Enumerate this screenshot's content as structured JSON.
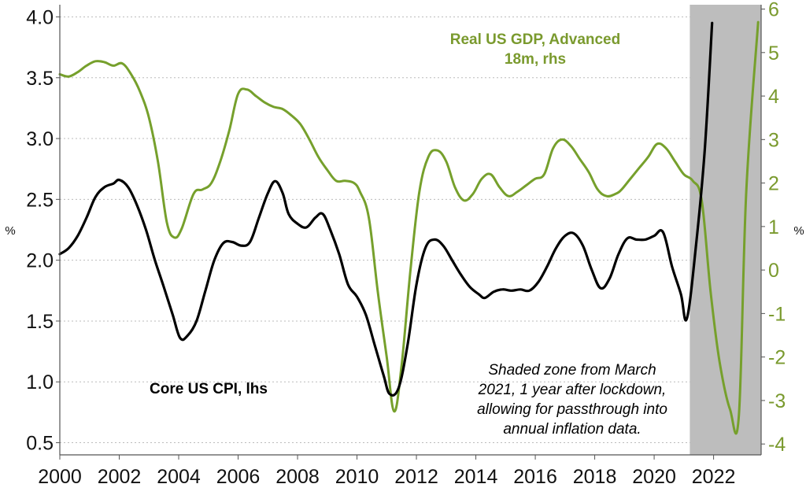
{
  "chart_data": {
    "type": "line",
    "x_range": [
      2000,
      2023.6
    ],
    "x_ticks": [
      "2000",
      "2002",
      "2004",
      "2006",
      "2008",
      "2010",
      "2012",
      "2014",
      "2016",
      "2018",
      "2020",
      "2022"
    ],
    "y_left": {
      "label": "%",
      "range": [
        0.4,
        4.1
      ],
      "ticks": [
        "0.5",
        "1.0",
        "1.5",
        "2.0",
        "2.5",
        "3.0",
        "3.5",
        "4.0"
      ]
    },
    "y_right": {
      "label": "%",
      "range": [
        -4.25,
        6.1
      ],
      "ticks": [
        "-4",
        "-3",
        "-2",
        "-1",
        "0",
        "1",
        "2",
        "3",
        "4",
        "5",
        "6"
      ]
    },
    "grid": "horizontal-dotted",
    "shaded_region": {
      "x": [
        2021.2,
        2023.6
      ],
      "color": "#bdbdbd"
    },
    "series": [
      {
        "name": "Core US CPI, lhs",
        "axis": "left",
        "color": "#000000",
        "points": [
          [
            2000.0,
            2.05
          ],
          [
            2000.3,
            2.1
          ],
          [
            2000.6,
            2.2
          ],
          [
            2000.9,
            2.35
          ],
          [
            2001.2,
            2.52
          ],
          [
            2001.5,
            2.6
          ],
          [
            2001.8,
            2.63
          ],
          [
            2002.0,
            2.66
          ],
          [
            2002.3,
            2.6
          ],
          [
            2002.6,
            2.45
          ],
          [
            2002.9,
            2.25
          ],
          [
            2003.2,
            2.0
          ],
          [
            2003.5,
            1.78
          ],
          [
            2003.8,
            1.55
          ],
          [
            2004.05,
            1.36
          ],
          [
            2004.3,
            1.38
          ],
          [
            2004.6,
            1.5
          ],
          [
            2004.9,
            1.75
          ],
          [
            2005.2,
            2.0
          ],
          [
            2005.5,
            2.14
          ],
          [
            2005.8,
            2.15
          ],
          [
            2006.1,
            2.12
          ],
          [
            2006.4,
            2.15
          ],
          [
            2006.7,
            2.35
          ],
          [
            2007.0,
            2.55
          ],
          [
            2007.25,
            2.65
          ],
          [
            2007.5,
            2.55
          ],
          [
            2007.7,
            2.38
          ],
          [
            2008.0,
            2.3
          ],
          [
            2008.3,
            2.27
          ],
          [
            2008.6,
            2.35
          ],
          [
            2008.85,
            2.38
          ],
          [
            2009.1,
            2.25
          ],
          [
            2009.4,
            2.05
          ],
          [
            2009.7,
            1.8
          ],
          [
            2010.0,
            1.7
          ],
          [
            2010.3,
            1.55
          ],
          [
            2010.6,
            1.3
          ],
          [
            2010.9,
            1.05
          ],
          [
            2011.1,
            0.9
          ],
          [
            2011.4,
            0.95
          ],
          [
            2011.7,
            1.3
          ],
          [
            2012.0,
            1.8
          ],
          [
            2012.3,
            2.1
          ],
          [
            2012.6,
            2.17
          ],
          [
            2012.9,
            2.12
          ],
          [
            2013.2,
            2.0
          ],
          [
            2013.5,
            1.88
          ],
          [
            2013.8,
            1.78
          ],
          [
            2014.1,
            1.72
          ],
          [
            2014.3,
            1.69
          ],
          [
            2014.6,
            1.74
          ],
          [
            2014.9,
            1.76
          ],
          [
            2015.2,
            1.75
          ],
          [
            2015.5,
            1.76
          ],
          [
            2015.8,
            1.75
          ],
          [
            2016.1,
            1.82
          ],
          [
            2016.4,
            1.95
          ],
          [
            2016.7,
            2.1
          ],
          [
            2017.0,
            2.2
          ],
          [
            2017.3,
            2.22
          ],
          [
            2017.6,
            2.12
          ],
          [
            2017.9,
            1.92
          ],
          [
            2018.2,
            1.77
          ],
          [
            2018.5,
            1.85
          ],
          [
            2018.8,
            2.05
          ],
          [
            2019.1,
            2.18
          ],
          [
            2019.4,
            2.17
          ],
          [
            2019.7,
            2.17
          ],
          [
            2020.0,
            2.2
          ],
          [
            2020.3,
            2.23
          ],
          [
            2020.6,
            1.95
          ],
          [
            2020.9,
            1.72
          ],
          [
            2021.1,
            1.52
          ],
          [
            2021.4,
            2.1
          ],
          [
            2021.7,
            2.9
          ],
          [
            2021.95,
            3.95
          ]
        ]
      },
      {
        "name": "Real US GDP, Advanced 18m, rhs",
        "axis": "right",
        "color": "#76a02c",
        "points": [
          [
            2000.0,
            4.5
          ],
          [
            2000.3,
            4.45
          ],
          [
            2000.6,
            4.55
          ],
          [
            2000.9,
            4.7
          ],
          [
            2001.2,
            4.8
          ],
          [
            2001.5,
            4.78
          ],
          [
            2001.8,
            4.7
          ],
          [
            2002.1,
            4.75
          ],
          [
            2002.4,
            4.5
          ],
          [
            2002.7,
            4.1
          ],
          [
            2003.0,
            3.5
          ],
          [
            2003.3,
            2.5
          ],
          [
            2003.6,
            1.1
          ],
          [
            2003.85,
            0.75
          ],
          [
            2004.1,
            0.95
          ],
          [
            2004.5,
            1.75
          ],
          [
            2004.8,
            1.85
          ],
          [
            2005.1,
            2.0
          ],
          [
            2005.4,
            2.5
          ],
          [
            2005.7,
            3.2
          ],
          [
            2006.0,
            4.05
          ],
          [
            2006.3,
            4.15
          ],
          [
            2006.6,
            4.0
          ],
          [
            2006.9,
            3.85
          ],
          [
            2007.2,
            3.75
          ],
          [
            2007.5,
            3.7
          ],
          [
            2007.8,
            3.55
          ],
          [
            2008.1,
            3.35
          ],
          [
            2008.4,
            3.0
          ],
          [
            2008.7,
            2.6
          ],
          [
            2009.0,
            2.3
          ],
          [
            2009.3,
            2.05
          ],
          [
            2009.6,
            2.05
          ],
          [
            2009.9,
            2.0
          ],
          [
            2010.1,
            1.8
          ],
          [
            2010.4,
            1.2
          ],
          [
            2010.7,
            -0.5
          ],
          [
            2011.0,
            -2.0
          ],
          [
            2011.25,
            -3.25
          ],
          [
            2011.5,
            -2.2
          ],
          [
            2011.8,
            0.0
          ],
          [
            2012.1,
            1.8
          ],
          [
            2012.4,
            2.6
          ],
          [
            2012.7,
            2.75
          ],
          [
            2013.0,
            2.5
          ],
          [
            2013.3,
            1.9
          ],
          [
            2013.6,
            1.6
          ],
          [
            2013.9,
            1.75
          ],
          [
            2014.2,
            2.1
          ],
          [
            2014.5,
            2.2
          ],
          [
            2014.8,
            1.9
          ],
          [
            2015.1,
            1.7
          ],
          [
            2015.4,
            1.8
          ],
          [
            2015.7,
            1.95
          ],
          [
            2016.0,
            2.1
          ],
          [
            2016.3,
            2.2
          ],
          [
            2016.6,
            2.8
          ],
          [
            2016.9,
            3.0
          ],
          [
            2017.2,
            2.85
          ],
          [
            2017.5,
            2.55
          ],
          [
            2017.8,
            2.25
          ],
          [
            2018.1,
            1.85
          ],
          [
            2018.4,
            1.7
          ],
          [
            2018.7,
            1.75
          ],
          [
            2018.9,
            1.85
          ],
          [
            2019.2,
            2.1
          ],
          [
            2019.5,
            2.35
          ],
          [
            2019.8,
            2.6
          ],
          [
            2020.1,
            2.9
          ],
          [
            2020.4,
            2.8
          ],
          [
            2020.7,
            2.5
          ],
          [
            2021.0,
            2.2
          ],
          [
            2021.3,
            2.05
          ],
          [
            2021.6,
            1.6
          ],
          [
            2021.9,
            -0.5
          ],
          [
            2022.2,
            -2.1
          ],
          [
            2022.55,
            -3.2
          ],
          [
            2022.85,
            -3.35
          ],
          [
            2023.1,
            1.8
          ],
          [
            2023.5,
            5.7
          ]
        ]
      }
    ],
    "annotations": {
      "gdp_label": [
        "Real US GDP, Advanced",
        "18m, rhs"
      ],
      "cpi_label": "Core US CPI, lhs",
      "shade_note": [
        "Shaded zone from March",
        "2021, 1 year after lockdown,",
        "allowing for passthrough into",
        "annual inflation data."
      ]
    }
  }
}
